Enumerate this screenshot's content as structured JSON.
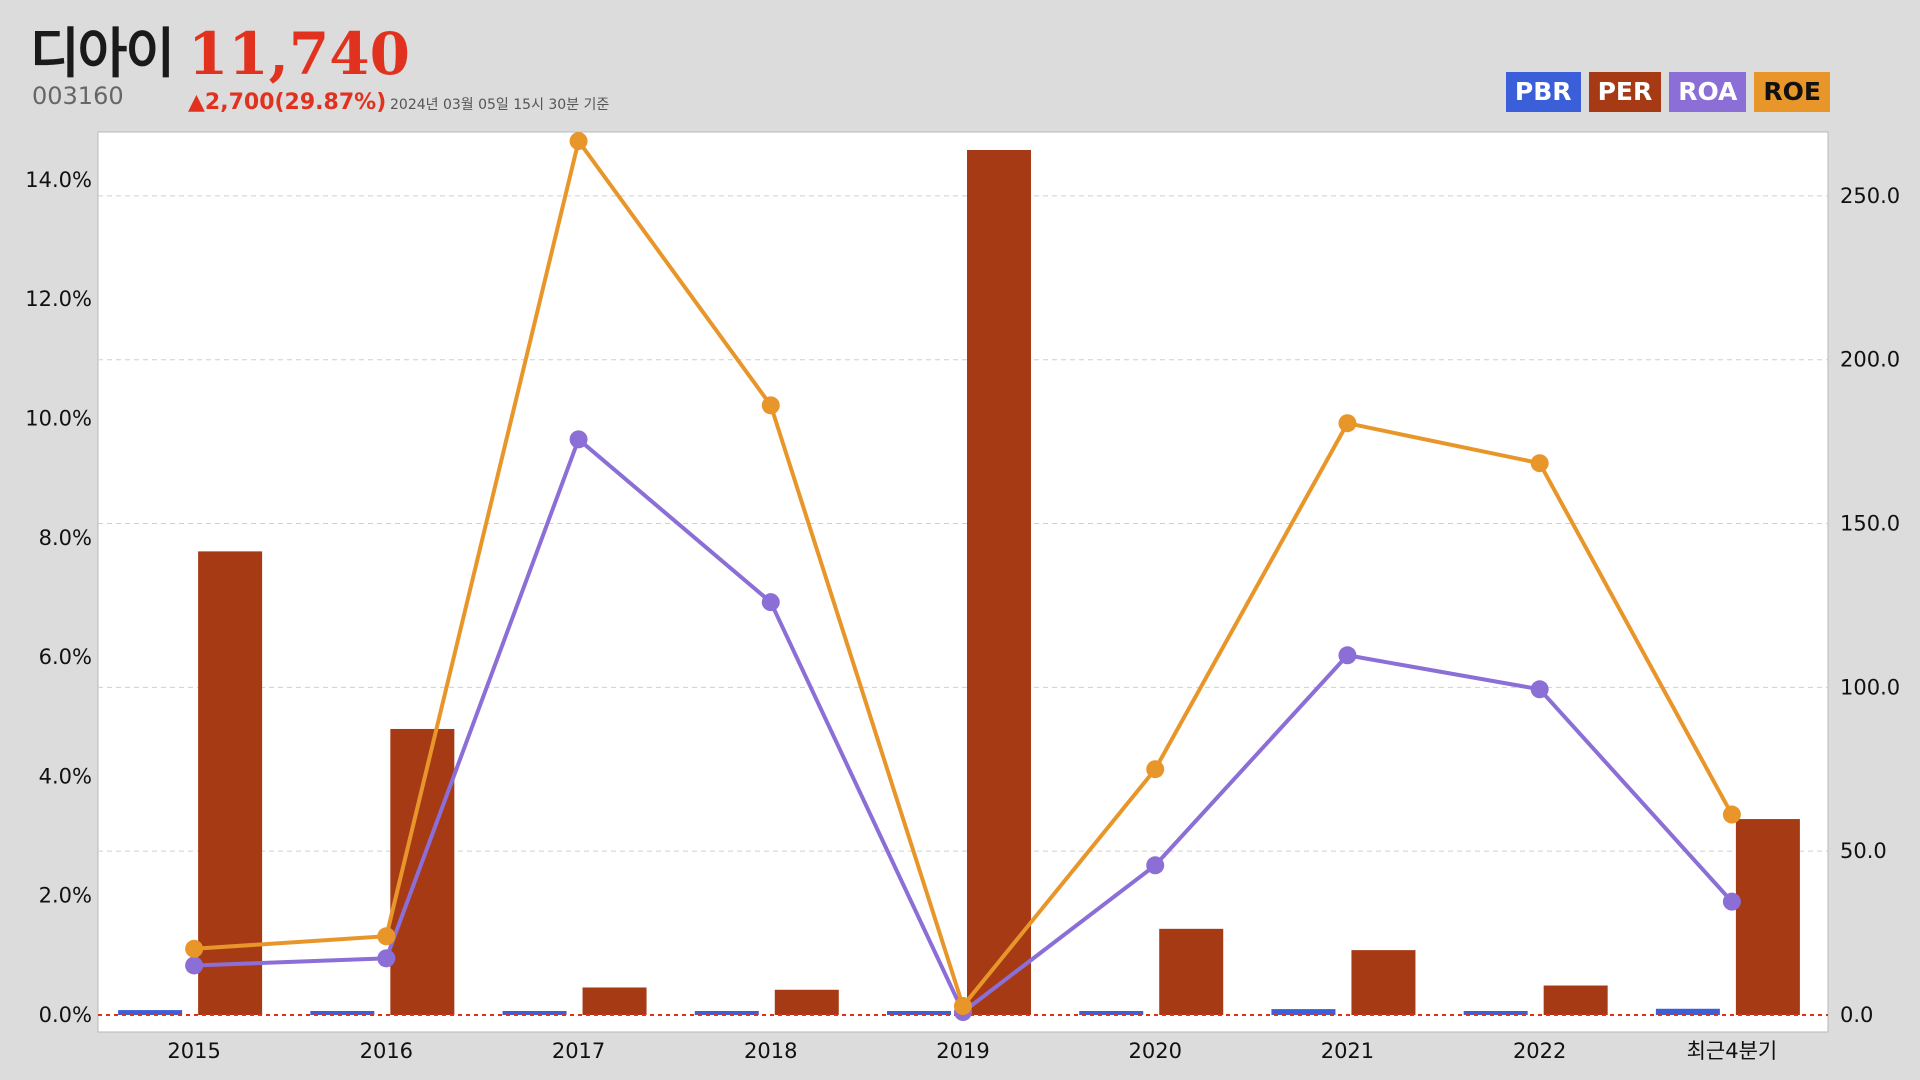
{
  "header": {
    "name": "디아이",
    "price": "11,740",
    "code": "003160",
    "change": "▲2,700(29.87%)",
    "date": "2024년 03월 05일 15시 30분 기준"
  },
  "legend": [
    {
      "label": "PBR",
      "color": "#3b5fd9"
    },
    {
      "label": "PER",
      "color": "#a63a14"
    },
    {
      "label": "ROA",
      "color": "#8b6fd6"
    },
    {
      "label": "ROE",
      "color": "#e8962a"
    }
  ],
  "chart_data": {
    "type": "bar",
    "categories": [
      "2015",
      "2016",
      "2017",
      "2018",
      "2019",
      "2020",
      "2021",
      "2022",
      "최근4분기"
    ],
    "left_axis": {
      "ticks": [
        "0.0%",
        "2.0%",
        "4.0%",
        "6.0%",
        "8.0%",
        "10.0%",
        "12.0%",
        "14.0%"
      ],
      "range": [
        0,
        14.5
      ]
    },
    "right_axis": {
      "ticks": [
        "0.0",
        "50.0",
        "100.0",
        "150.0",
        "200.0",
        "250.0"
      ],
      "range": [
        0,
        264
      ]
    },
    "series": [
      {
        "name": "PBR",
        "type": "bar",
        "axis": "right",
        "color": "#3b5fd9",
        "values": [
          1.5,
          1.2,
          1.0,
          0.8,
          0.7,
          1.1,
          1.8,
          0.9,
          1.9
        ]
      },
      {
        "name": "PER",
        "type": "bar",
        "axis": "right",
        "color": "#a63a14",
        "values": [
          141.5,
          87.3,
          8.4,
          7.7,
          264.0,
          26.3,
          19.8,
          9.0,
          59.8
        ]
      },
      {
        "name": "ROA",
        "type": "line",
        "axis": "left",
        "color": "#8b6fd6",
        "values": [
          0.83,
          0.95,
          9.65,
          6.92,
          0.05,
          2.51,
          6.03,
          5.46,
          1.9
        ]
      },
      {
        "name": "ROE",
        "type": "line",
        "axis": "left",
        "color": "#e8962a",
        "values": [
          1.11,
          1.32,
          14.65,
          10.22,
          0.15,
          4.12,
          9.92,
          9.25,
          3.36
        ]
      }
    ],
    "baseline_color": "#e0321f",
    "grid": "horizontal-dashed"
  }
}
